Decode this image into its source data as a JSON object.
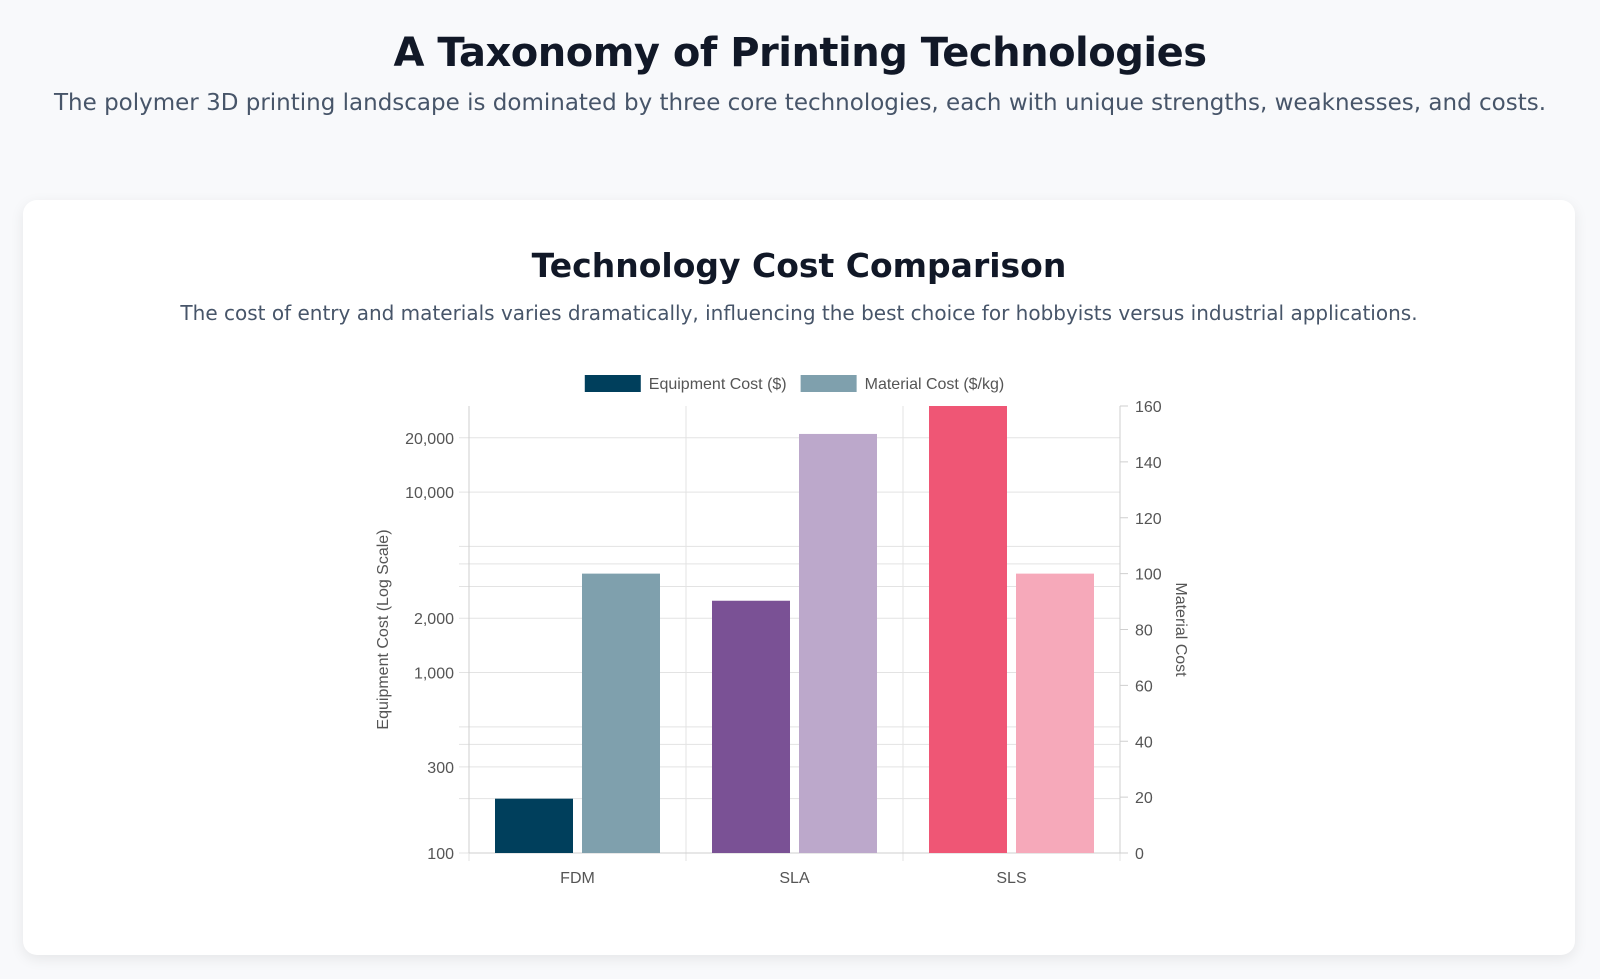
{
  "header": {
    "title": "A Taxonomy of Printing Technologies",
    "subtitle": "The polymer 3D printing landscape is dominated by three core technologies, each with unique strengths, weaknesses, and costs."
  },
  "card": {
    "title": "Technology Cost Comparison",
    "subtitle": "The cost of entry and materials varies dramatically, influencing the best choice for hobbyists versus industrial applications."
  },
  "chart_data": {
    "type": "bar",
    "categories": [
      "FDM",
      "SLA",
      "SLS"
    ],
    "series": [
      {
        "name": "Equipment Cost ($)",
        "axis": "left",
        "values": [
          200,
          2500,
          30000
        ],
        "colors": [
          "#003f5c",
          "#7a5195",
          "#ef5675"
        ],
        "legend_color": "#003f5c"
      },
      {
        "name": "Material Cost ($/kg)",
        "axis": "right",
        "values": [
          100,
          150,
          100
        ],
        "colors": [
          "#7fa0ad",
          "#bca8cb",
          "#f6a9ba"
        ],
        "legend_color": "#7fa0ad"
      }
    ],
    "y_left": {
      "label": "Equipment Cost (Log Scale)",
      "scale": "log",
      "range": [
        100,
        30000
      ],
      "tick_labels": [
        {
          "value": 100,
          "text": "100"
        },
        {
          "value": 300,
          "text": "300"
        },
        {
          "value": 1000,
          "text": "1,000"
        },
        {
          "value": 2000,
          "text": "2,000"
        },
        {
          "value": 10000,
          "text": "10,000"
        },
        {
          "value": 20000,
          "text": "20,000"
        }
      ],
      "grid_values": [
        100,
        200,
        300,
        400,
        500,
        1000,
        2000,
        3000,
        4000,
        5000,
        10000,
        20000
      ]
    },
    "y_right": {
      "label": "Material Cost",
      "scale": "linear",
      "range": [
        0,
        160
      ],
      "ticks": [
        0,
        20,
        40,
        60,
        80,
        100,
        120,
        140,
        160
      ]
    },
    "legend_position": "top",
    "grid": true
  }
}
